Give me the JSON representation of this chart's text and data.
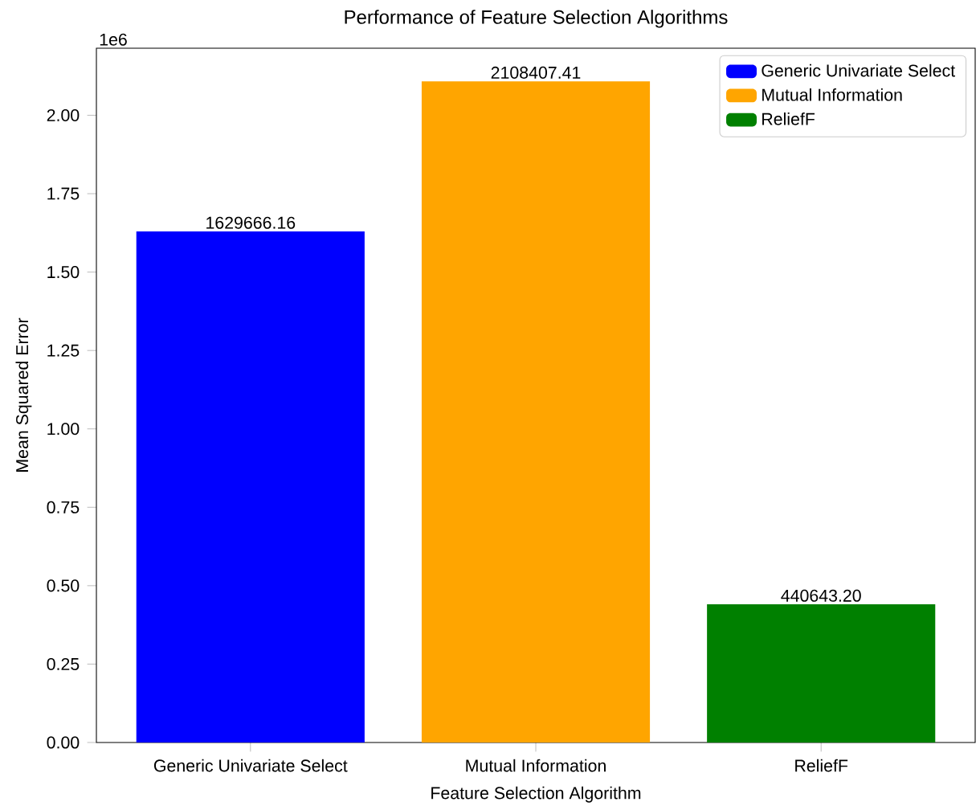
{
  "chart_data": {
    "type": "bar",
    "title": "Performance of Feature Selection Algorithms",
    "xlabel": "Feature Selection Algorithm",
    "ylabel": "Mean Squared Error",
    "annotations": [
      "1e6",
      {
        "text": "1629666.16",
        "x": "Generic Univariate Select",
        "y": 1.6297
      },
      {
        "text": "2108407.41",
        "x": "Mutual Information",
        "y": 2.1084
      },
      {
        "text": "440643.20",
        "x": "ReliefF",
        "y": 0.4406
      }
    ],
    "categories": [
      "Generic Univariate Select",
      "Mutual Information",
      "ReliefF"
    ],
    "series": [
      {
        "name": "Generic Univariate Select",
        "color": "#0000ff",
        "values": [
          1.6297,
          null,
          null
        ]
      },
      {
        "name": "Mutual Information",
        "color": "#ffa500",
        "values": [
          null,
          2.1084,
          null
        ]
      },
      {
        "name": "ReliefF",
        "color": "#008000",
        "values": [
          null,
          null,
          0.4406
        ]
      }
    ],
    "ylim": [
      0,
      2.2138
    ],
    "yticks": [
      {
        "value": 0,
        "label": "0.00"
      },
      {
        "value": 0.25,
        "label": "0.25"
      },
      {
        "value": 0.5,
        "label": "0.50"
      },
      {
        "value": 0.75,
        "label": "0.75"
      },
      {
        "value": 1,
        "label": "1.00"
      },
      {
        "value": 1.25,
        "label": "1.25"
      },
      {
        "value": 1.5,
        "label": "1.50"
      },
      {
        "value": 1.75,
        "label": "1.75"
      },
      {
        "value": 2,
        "label": "2.00"
      }
    ],
    "legend": "top right",
    "grid": false
  }
}
